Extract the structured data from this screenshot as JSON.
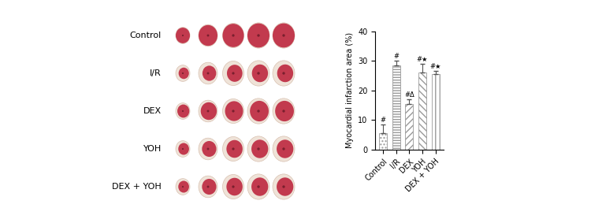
{
  "image_panel": {
    "row_labels": [
      "Control",
      "I/R",
      "DEX",
      "YOH",
      "DEX + YOH"
    ]
  },
  "chart_data": {
    "type": "bar",
    "categories": [
      "Control",
      "I/R",
      "DEX",
      "YOH",
      "DEX + YOH"
    ],
    "values": [
      5.5,
      28.5,
      15.5,
      26,
      25.5
    ],
    "errors": [
      3,
      1.5,
      1.5,
      3,
      1
    ],
    "annotations": [
      "#",
      "#",
      "#Δ",
      "#★",
      "#★"
    ],
    "ylabel": "Myocardial infarction area (%)",
    "color": "#9a9a9a",
    "ylim": [
      0,
      40
    ],
    "yticks": [
      0,
      10,
      20,
      30,
      40
    ],
    "grid": false
  }
}
